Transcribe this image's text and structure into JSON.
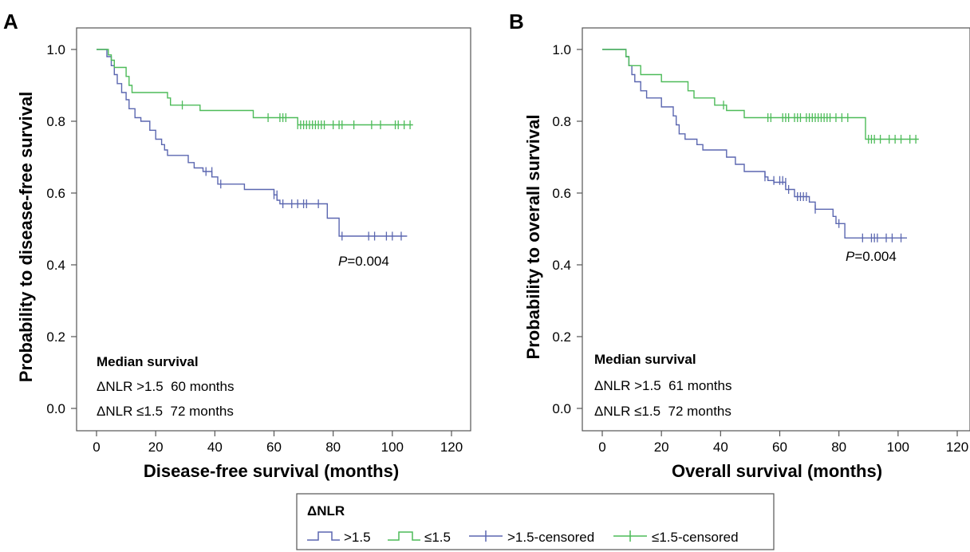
{
  "legend": {
    "title": "ΔNLR",
    "items": [
      {
        "label": ">1.5",
        "color": "#5b67b0",
        "kind": "line"
      },
      {
        "label": "≤1.5",
        "color": "#4dbb59",
        "kind": "line"
      },
      {
        "label": ">1.5-censored",
        "color": "#5b67b0",
        "kind": "censor"
      },
      {
        "label": "≤1.5-censored",
        "color": "#4dbb59",
        "kind": "censor"
      }
    ]
  },
  "chart_data": [
    {
      "type": "line",
      "step": true,
      "panel": "A",
      "xlabel": "Disease-free survival (months)",
      "ylabel": "Probability to disease-free survival",
      "xlim": [
        0,
        120
      ],
      "ylim": [
        0,
        1.0
      ],
      "xticks": [
        "0",
        "20",
        "40",
        "60",
        "80",
        "100",
        "120"
      ],
      "yticks": [
        "0.0",
        "0.2",
        "0.4",
        "0.6",
        "0.8",
        "1.0"
      ],
      "grid": false,
      "pvalue": "=0.004",
      "pvalue_prefix": "P",
      "median": {
        "title": "Median survival",
        "rows": [
          "ΔNLR >1.5  60 months",
          "ΔNLR ≤1.5  72 months"
        ]
      },
      "series": [
        {
          "name": ">1.5",
          "color": "#5b67b0",
          "steps": [
            [
              0,
              1.0
            ],
            [
              3.5,
              0.98
            ],
            [
              5,
              0.955
            ],
            [
              6,
              0.93
            ],
            [
              7,
              0.905
            ],
            [
              8.5,
              0.88
            ],
            [
              10,
              0.86
            ],
            [
              11,
              0.835
            ],
            [
              13,
              0.81
            ],
            [
              15,
              0.8
            ],
            [
              18,
              0.775
            ],
            [
              20,
              0.75
            ],
            [
              22,
              0.735
            ],
            [
              23,
              0.72
            ],
            [
              24,
              0.705
            ],
            [
              31,
              0.685
            ],
            [
              33,
              0.67
            ],
            [
              36,
              0.66
            ],
            [
              39,
              0.645
            ],
            [
              41,
              0.625
            ],
            [
              50,
              0.61
            ],
            [
              60,
              0.595
            ],
            [
              61,
              0.58
            ],
            [
              62,
              0.57
            ],
            [
              78,
              0.53
            ],
            [
              82,
              0.48
            ],
            [
              105,
              0.48
            ]
          ],
          "censored": [
            [
              37,
              0.66
            ],
            [
              39,
              0.66
            ],
            [
              42,
              0.625
            ],
            [
              60,
              0.595
            ],
            [
              61,
              0.595
            ],
            [
              63,
              0.57
            ],
            [
              66,
              0.57
            ],
            [
              68,
              0.57
            ],
            [
              70,
              0.57
            ],
            [
              71,
              0.57
            ],
            [
              75,
              0.57
            ],
            [
              83,
              0.48
            ],
            [
              92,
              0.48
            ],
            [
              94,
              0.48
            ],
            [
              98,
              0.48
            ],
            [
              100,
              0.48
            ],
            [
              103,
              0.48
            ]
          ]
        },
        {
          "name": "≤1.5",
          "color": "#4dbb59",
          "steps": [
            [
              0,
              1.0
            ],
            [
              4,
              0.985
            ],
            [
              5,
              0.97
            ],
            [
              6,
              0.95
            ],
            [
              10,
              0.925
            ],
            [
              11,
              0.9
            ],
            [
              12,
              0.88
            ],
            [
              24,
              0.865
            ],
            [
              25,
              0.845
            ],
            [
              35,
              0.83
            ],
            [
              53,
              0.81
            ],
            [
              68,
              0.79
            ],
            [
              107,
              0.79
            ]
          ],
          "censored": [
            [
              29,
              0.845
            ],
            [
              58,
              0.81
            ],
            [
              62,
              0.81
            ],
            [
              63,
              0.81
            ],
            [
              64,
              0.81
            ],
            [
              68,
              0.79
            ],
            [
              69,
              0.79
            ],
            [
              70,
              0.79
            ],
            [
              71,
              0.79
            ],
            [
              72,
              0.79
            ],
            [
              73,
              0.79
            ],
            [
              74,
              0.79
            ],
            [
              75,
              0.79
            ],
            [
              76,
              0.79
            ],
            [
              77,
              0.79
            ],
            [
              80,
              0.79
            ],
            [
              82,
              0.79
            ],
            [
              83,
              0.79
            ],
            [
              87,
              0.79
            ],
            [
              93,
              0.79
            ],
            [
              96,
              0.79
            ],
            [
              101,
              0.79
            ],
            [
              102,
              0.79
            ],
            [
              104,
              0.79
            ],
            [
              106,
              0.79
            ]
          ]
        }
      ]
    },
    {
      "type": "line",
      "step": true,
      "panel": "B",
      "xlabel": "Overall survival (months)",
      "ylabel": "Probability to overall survival",
      "xlim": [
        0,
        120
      ],
      "ylim": [
        0,
        1.0
      ],
      "xticks": [
        "0",
        "20",
        "40",
        "60",
        "80",
        "100",
        "120"
      ],
      "yticks": [
        "0.0",
        "0.2",
        "0.4",
        "0.6",
        "0.8",
        "1.0"
      ],
      "grid": false,
      "pvalue": "=0.004",
      "pvalue_prefix": "P",
      "median": {
        "title": "Median survival",
        "rows": [
          "ΔNLR >1.5  61 months",
          "ΔNLR ≤1.5  72 months"
        ]
      },
      "series": [
        {
          "name": ">1.5",
          "color": "#5b67b0",
          "steps": [
            [
              0,
              1.0
            ],
            [
              8,
              0.98
            ],
            [
              9,
              0.955
            ],
            [
              10,
              0.93
            ],
            [
              11,
              0.91
            ],
            [
              13,
              0.885
            ],
            [
              15,
              0.865
            ],
            [
              20,
              0.84
            ],
            [
              24,
              0.815
            ],
            [
              25,
              0.79
            ],
            [
              26,
              0.765
            ],
            [
              28,
              0.75
            ],
            [
              32,
              0.735
            ],
            [
              34,
              0.72
            ],
            [
              42,
              0.7
            ],
            [
              45,
              0.68
            ],
            [
              48,
              0.66
            ],
            [
              55,
              0.645
            ],
            [
              56,
              0.635
            ],
            [
              58,
              0.63
            ],
            [
              62,
              0.61
            ],
            [
              65,
              0.59
            ],
            [
              70,
              0.575
            ],
            [
              72,
              0.555
            ],
            [
              78,
              0.535
            ],
            [
              79,
              0.515
            ],
            [
              82,
              0.475
            ],
            [
              103,
              0.475
            ]
          ],
          "censored": [
            [
              55,
              0.645
            ],
            [
              58,
              0.635
            ],
            [
              60,
              0.635
            ],
            [
              61,
              0.635
            ],
            [
              62,
              0.63
            ],
            [
              63,
              0.61
            ],
            [
              66,
              0.59
            ],
            [
              67,
              0.59
            ],
            [
              68,
              0.59
            ],
            [
              69,
              0.59
            ],
            [
              72,
              0.555
            ],
            [
              80,
              0.515
            ],
            [
              88,
              0.475
            ],
            [
              91,
              0.475
            ],
            [
              92,
              0.475
            ],
            [
              93,
              0.475
            ],
            [
              96,
              0.475
            ],
            [
              98,
              0.475
            ],
            [
              101,
              0.475
            ]
          ]
        },
        {
          "name": "≤1.5",
          "color": "#4dbb59",
          "steps": [
            [
              0,
              1.0
            ],
            [
              8,
              0.98
            ],
            [
              9,
              0.955
            ],
            [
              13,
              0.93
            ],
            [
              20,
              0.91
            ],
            [
              29,
              0.885
            ],
            [
              31,
              0.865
            ],
            [
              38,
              0.845
            ],
            [
              42,
              0.83
            ],
            [
              48,
              0.81
            ],
            [
              55,
              0.81
            ],
            [
              89,
              0.75
            ],
            [
              107,
              0.75
            ]
          ],
          "censored": [
            [
              41,
              0.845
            ],
            [
              56,
              0.81
            ],
            [
              57,
              0.81
            ],
            [
              61,
              0.81
            ],
            [
              62,
              0.81
            ],
            [
              63,
              0.81
            ],
            [
              65,
              0.81
            ],
            [
              66,
              0.81
            ],
            [
              67,
              0.81
            ],
            [
              69,
              0.81
            ],
            [
              70,
              0.81
            ],
            [
              71,
              0.81
            ],
            [
              72,
              0.81
            ],
            [
              73,
              0.81
            ],
            [
              74,
              0.81
            ],
            [
              75,
              0.81
            ],
            [
              76,
              0.81
            ],
            [
              77,
              0.81
            ],
            [
              79,
              0.81
            ],
            [
              81,
              0.81
            ],
            [
              83,
              0.81
            ],
            [
              90,
              0.75
            ],
            [
              91,
              0.75
            ],
            [
              92,
              0.75
            ],
            [
              94,
              0.75
            ],
            [
              97,
              0.75
            ],
            [
              99,
              0.75
            ],
            [
              101,
              0.75
            ],
            [
              104,
              0.75
            ],
            [
              106,
              0.75
            ]
          ]
        }
      ]
    }
  ]
}
